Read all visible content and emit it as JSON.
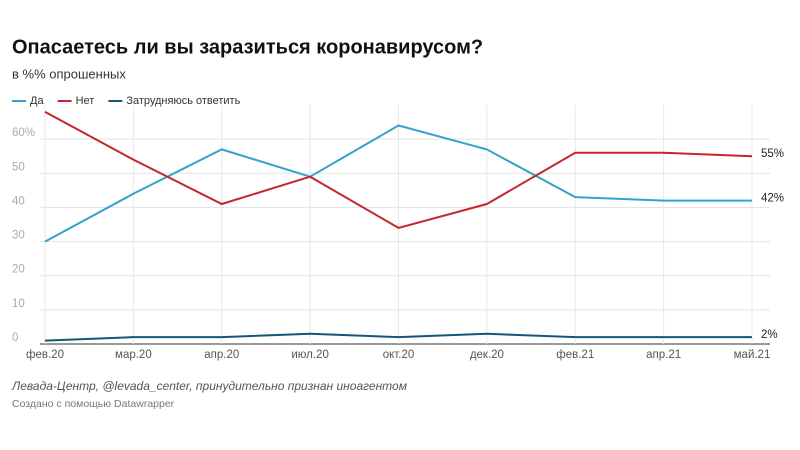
{
  "chart_data": {
    "type": "line",
    "title": "Опасаетесь ли вы заразиться коронавирусом?",
    "subtitle": "в %% опрошенных",
    "categories": [
      "фев.20",
      "мар.20",
      "апр.20",
      "июл.20",
      "окт.20",
      "дек.20",
      "фев.21",
      "апр.21",
      "май.21"
    ],
    "series": [
      {
        "name": "Да",
        "color": "#33a3cc",
        "values": [
          30,
          44,
          57,
          49,
          64,
          57,
          43,
          42,
          42
        ],
        "value_labels": [
          null,
          null,
          null,
          null,
          null,
          null,
          null,
          null,
          "42%"
        ]
      },
      {
        "name": "Нет",
        "color": "#c4262e",
        "values": [
          68,
          54,
          41,
          49,
          34,
          41,
          56,
          56,
          55
        ],
        "value_labels": [
          null,
          null,
          null,
          null,
          null,
          null,
          null,
          null,
          "55%"
        ]
      },
      {
        "name": "Затрудняюсь ответить",
        "color": "#15557b",
        "values": [
          1,
          2,
          2,
          3,
          2,
          3,
          2,
          2,
          2
        ],
        "value_labels": [
          null,
          null,
          null,
          null,
          null,
          null,
          null,
          null,
          "2%"
        ]
      }
    ],
    "ylim": [
      0,
      70
    ],
    "yticks": [
      0,
      10,
      20,
      30,
      40,
      50,
      {
        "value": 60,
        "label": "60%"
      }
    ],
    "grid": true,
    "source": "Левада-Центр, @levada_center, принудительно признан иноагентом",
    "credit": "Создано с помощью Datawrapper"
  }
}
